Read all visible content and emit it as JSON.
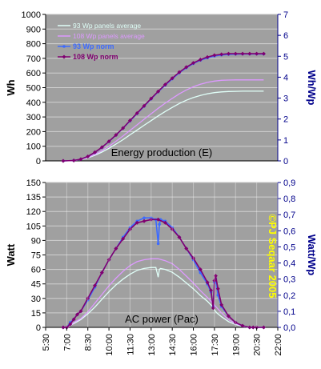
{
  "chart_data": [
    {
      "type": "line",
      "panel": "top",
      "title": "Energy production (E)",
      "ylabel": "Wh",
      "ylabel_right": "Wh/Wp",
      "ylim": [
        0,
        1000
      ],
      "yticks": [
        "0",
        "100",
        "200",
        "300",
        "400",
        "500",
        "600",
        "700",
        "800",
        "900",
        "1000"
      ],
      "ylim_right": [
        0,
        7
      ],
      "yticks_right": [
        "0",
        "1",
        "2",
        "3",
        "4",
        "5",
        "6",
        "7"
      ],
      "grid": true,
      "legend_position": "top-left",
      "colors": {
        "plot_bg": "#a0a0a0",
        "right_axis": "#00008b"
      },
      "series": [
        {
          "name": "93 Wp panels average",
          "color": "#e0fff8",
          "marker": "none",
          "axis": "left",
          "x": [
            "6:45",
            "7:30",
            "8:00",
            "8:30",
            "9:00",
            "9:30",
            "10:00",
            "10:30",
            "11:00",
            "11:30",
            "12:00",
            "12:30",
            "13:00",
            "13:30",
            "14:00",
            "14:30",
            "15:00",
            "15:30",
            "16:00",
            "16:30",
            "17:00",
            "17:30",
            "18:00",
            "18:30",
            "19:00",
            "19:30",
            "20:00",
            "20:30",
            "21:00"
          ],
          "values": [
            0,
            2,
            8,
            20,
            38,
            60,
            86,
            115,
            145,
            178,
            210,
            243,
            275,
            307,
            337,
            365,
            392,
            414,
            432,
            447,
            458,
            466,
            471,
            474,
            475,
            476,
            476,
            476,
            476
          ]
        },
        {
          "name": "108 Wp panels average",
          "color": "#dd99ff",
          "marker": "none",
          "axis": "left",
          "x": [
            "6:45",
            "7:30",
            "8:00",
            "8:30",
            "9:00",
            "9:30",
            "10:00",
            "10:30",
            "11:00",
            "11:30",
            "12:00",
            "12:30",
            "13:00",
            "13:30",
            "14:00",
            "14:30",
            "15:00",
            "15:30",
            "16:00",
            "16:30",
            "17:00",
            "17:30",
            "18:00",
            "18:30",
            "19:00",
            "19:30",
            "20:00",
            "20:30",
            "21:00"
          ],
          "values": [
            0,
            2,
            9,
            23,
            44,
            70,
            100,
            134,
            170,
            208,
            246,
            284,
            322,
            359,
            394,
            427,
            458,
            484,
            506,
            523,
            536,
            545,
            550,
            552,
            553,
            553,
            553,
            553,
            553
          ]
        },
        {
          "name": "93 Wp norm",
          "color": "#3d6bff",
          "marker": "dot",
          "axis": "right",
          "x": [
            "6:45",
            "7:30",
            "8:00",
            "8:30",
            "9:00",
            "9:30",
            "10:00",
            "10:30",
            "11:00",
            "11:30",
            "12:00",
            "12:30",
            "13:00",
            "13:30",
            "14:00",
            "14:30",
            "15:00",
            "15:30",
            "16:00",
            "16:30",
            "17:00",
            "17:30",
            "18:00",
            "18:30",
            "19:00",
            "19:30",
            "20:00",
            "20:30",
            "21:00"
          ],
          "values": [
            0,
            0.02,
            0.08,
            0.21,
            0.4,
            0.64,
            0.92,
            1.23,
            1.56,
            1.91,
            2.26,
            2.61,
            2.96,
            3.3,
            3.62,
            3.92,
            4.21,
            4.45,
            4.65,
            4.81,
            4.92,
            5.01,
            5.06,
            5.09,
            5.1,
            5.11,
            5.11,
            5.11,
            5.11
          ]
        },
        {
          "name": "108 Wp norm",
          "color": "#800070",
          "marker": "diamond",
          "axis": "right",
          "x": [
            "6:45",
            "7:30",
            "8:00",
            "8:30",
            "9:00",
            "9:30",
            "10:00",
            "10:30",
            "11:00",
            "11:30",
            "12:00",
            "12:30",
            "13:00",
            "13:30",
            "14:00",
            "14:30",
            "15:00",
            "15:30",
            "16:00",
            "16:30",
            "17:00",
            "17:30",
            "18:00",
            "18:30",
            "19:00",
            "19:30",
            "20:00",
            "20:30",
            "21:00"
          ],
          "values": [
            0,
            0.02,
            0.08,
            0.21,
            0.41,
            0.65,
            0.93,
            1.24,
            1.57,
            1.93,
            2.28,
            2.63,
            2.98,
            3.32,
            3.65,
            3.95,
            4.24,
            4.48,
            4.68,
            4.84,
            4.96,
            5.05,
            5.09,
            5.12,
            5.12,
            5.12,
            5.12,
            5.12,
            5.12
          ]
        }
      ]
    },
    {
      "type": "line",
      "panel": "bottom",
      "title": "AC power (Pac)",
      "ylabel": "Watt",
      "ylabel_right": "Watt/Wp",
      "ylim": [
        0,
        150
      ],
      "yticks": [
        "0",
        "15",
        "30",
        "45",
        "60",
        "75",
        "90",
        "105",
        "120",
        "135",
        "150"
      ],
      "ylim_right": [
        0,
        0.9
      ],
      "yticks_right": [
        "0,0",
        "0,1",
        "0,2",
        "0,3",
        "0,4",
        "0,5",
        "0,6",
        "0,7",
        "0,8",
        "0,9"
      ],
      "xticks": [
        "5:30",
        "7:00",
        "8:30",
        "10:00",
        "11:30",
        "13:00",
        "14:30",
        "16:00",
        "17:30",
        "19:00",
        "20:30",
        "22:00"
      ],
      "grid": true,
      "colors": {
        "plot_bg": "#a0a0a0",
        "right_axis": "#00008b"
      },
      "annotation": "©PJ Seqaar 2005",
      "series": [
        {
          "name": "93 Wp panels average",
          "color": "#e0fff8",
          "marker": "none",
          "axis": "left",
          "x": [
            "6:45",
            "7:00",
            "7:15",
            "7:30",
            "7:45",
            "8:00",
            "8:30",
            "9:00",
            "9:30",
            "10:00",
            "10:30",
            "11:00",
            "11:30",
            "12:00",
            "12:30",
            "13:00",
            "13:20",
            "13:30",
            "13:35",
            "13:40",
            "14:00",
            "14:30",
            "15:00",
            "15:30",
            "16:00",
            "16:30",
            "17:00",
            "17:20",
            "17:30",
            "17:40",
            "18:00",
            "18:30",
            "19:00",
            "19:30",
            "20:00",
            "20:15",
            "20:30",
            "21:00"
          ],
          "values": [
            0,
            0,
            2,
            4,
            6,
            8,
            14,
            21,
            29,
            37,
            44,
            50,
            55,
            59,
            61,
            62,
            62,
            52,
            60,
            61,
            60,
            57,
            52,
            46,
            40,
            33,
            27,
            22,
            18,
            15,
            11,
            6,
            3,
            1,
            0,
            0,
            0,
            0
          ]
        },
        {
          "name": "108 Wp panels average",
          "color": "#dd99ff",
          "marker": "none",
          "axis": "left",
          "x": [
            "6:45",
            "7:00",
            "7:15",
            "7:30",
            "7:45",
            "8:00",
            "8:30",
            "9:00",
            "9:30",
            "10:00",
            "10:30",
            "11:00",
            "11:30",
            "12:00",
            "12:30",
            "13:00",
            "13:30",
            "14:00",
            "14:30",
            "15:00",
            "15:30",
            "16:00",
            "16:30",
            "17:00",
            "17:30",
            "18:00",
            "18:30",
            "19:00",
            "19:30",
            "20:00",
            "20:15",
            "20:30",
            "21:00"
          ],
          "values": [
            0,
            0,
            2,
            5,
            7,
            9,
            16,
            25,
            34,
            43,
            51,
            58,
            64,
            68,
            70,
            71,
            71,
            69,
            66,
            60,
            53,
            46,
            38,
            31,
            23,
            15,
            8,
            4,
            1,
            0,
            0,
            0,
            0
          ]
        },
        {
          "name": "93 Wp norm",
          "color": "#3d6bff",
          "marker": "dot",
          "axis": "right",
          "x": [
            "6:45",
            "7:00",
            "7:15",
            "7:30",
            "7:45",
            "8:00",
            "8:30",
            "9:00",
            "9:30",
            "10:00",
            "10:30",
            "11:00",
            "11:30",
            "12:00",
            "12:30",
            "13:00",
            "13:20",
            "13:30",
            "13:35",
            "13:40",
            "14:00",
            "14:30",
            "15:00",
            "15:30",
            "16:00",
            "16:30",
            "17:00",
            "17:15",
            "17:25",
            "17:30",
            "17:35",
            "17:45",
            "18:00",
            "18:30",
            "19:00",
            "19:30",
            "20:00",
            "20:15",
            "20:30",
            "21:00"
          ],
          "values": [
            0,
            0,
            0.03,
            0.05,
            0.08,
            0.1,
            0.17,
            0.25,
            0.34,
            0.42,
            0.49,
            0.56,
            0.62,
            0.66,
            0.68,
            0.68,
            0.67,
            0.52,
            0.64,
            0.67,
            0.66,
            0.62,
            0.56,
            0.49,
            0.42,
            0.34,
            0.27,
            0.22,
            0.13,
            0.28,
            0.3,
            0.2,
            0.13,
            0.07,
            0.03,
            0.01,
            0,
            0,
            0,
            0
          ]
        },
        {
          "name": "108 Wp norm",
          "color": "#800070",
          "marker": "diamond",
          "axis": "right",
          "x": [
            "6:45",
            "7:00",
            "7:15",
            "7:30",
            "7:45",
            "8:00",
            "8:30",
            "9:00",
            "9:30",
            "10:00",
            "10:30",
            "11:00",
            "11:30",
            "12:00",
            "12:30",
            "13:00",
            "13:30",
            "14:00",
            "14:30",
            "15:00",
            "15:30",
            "16:00",
            "16:30",
            "17:00",
            "17:15",
            "17:25",
            "17:30",
            "17:35",
            "17:45",
            "18:00",
            "18:30",
            "19:00",
            "19:30",
            "20:00",
            "20:15",
            "20:30",
            "21:00"
          ],
          "values": [
            0,
            0,
            0.02,
            0.05,
            0.08,
            0.1,
            0.18,
            0.26,
            0.34,
            0.42,
            0.49,
            0.55,
            0.61,
            0.65,
            0.66,
            0.67,
            0.67,
            0.65,
            0.61,
            0.56,
            0.49,
            0.43,
            0.36,
            0.28,
            0.23,
            0.12,
            0.29,
            0.32,
            0.24,
            0.14,
            0.07,
            0.03,
            0.01,
            0,
            0,
            0,
            0
          ]
        }
      ]
    }
  ]
}
